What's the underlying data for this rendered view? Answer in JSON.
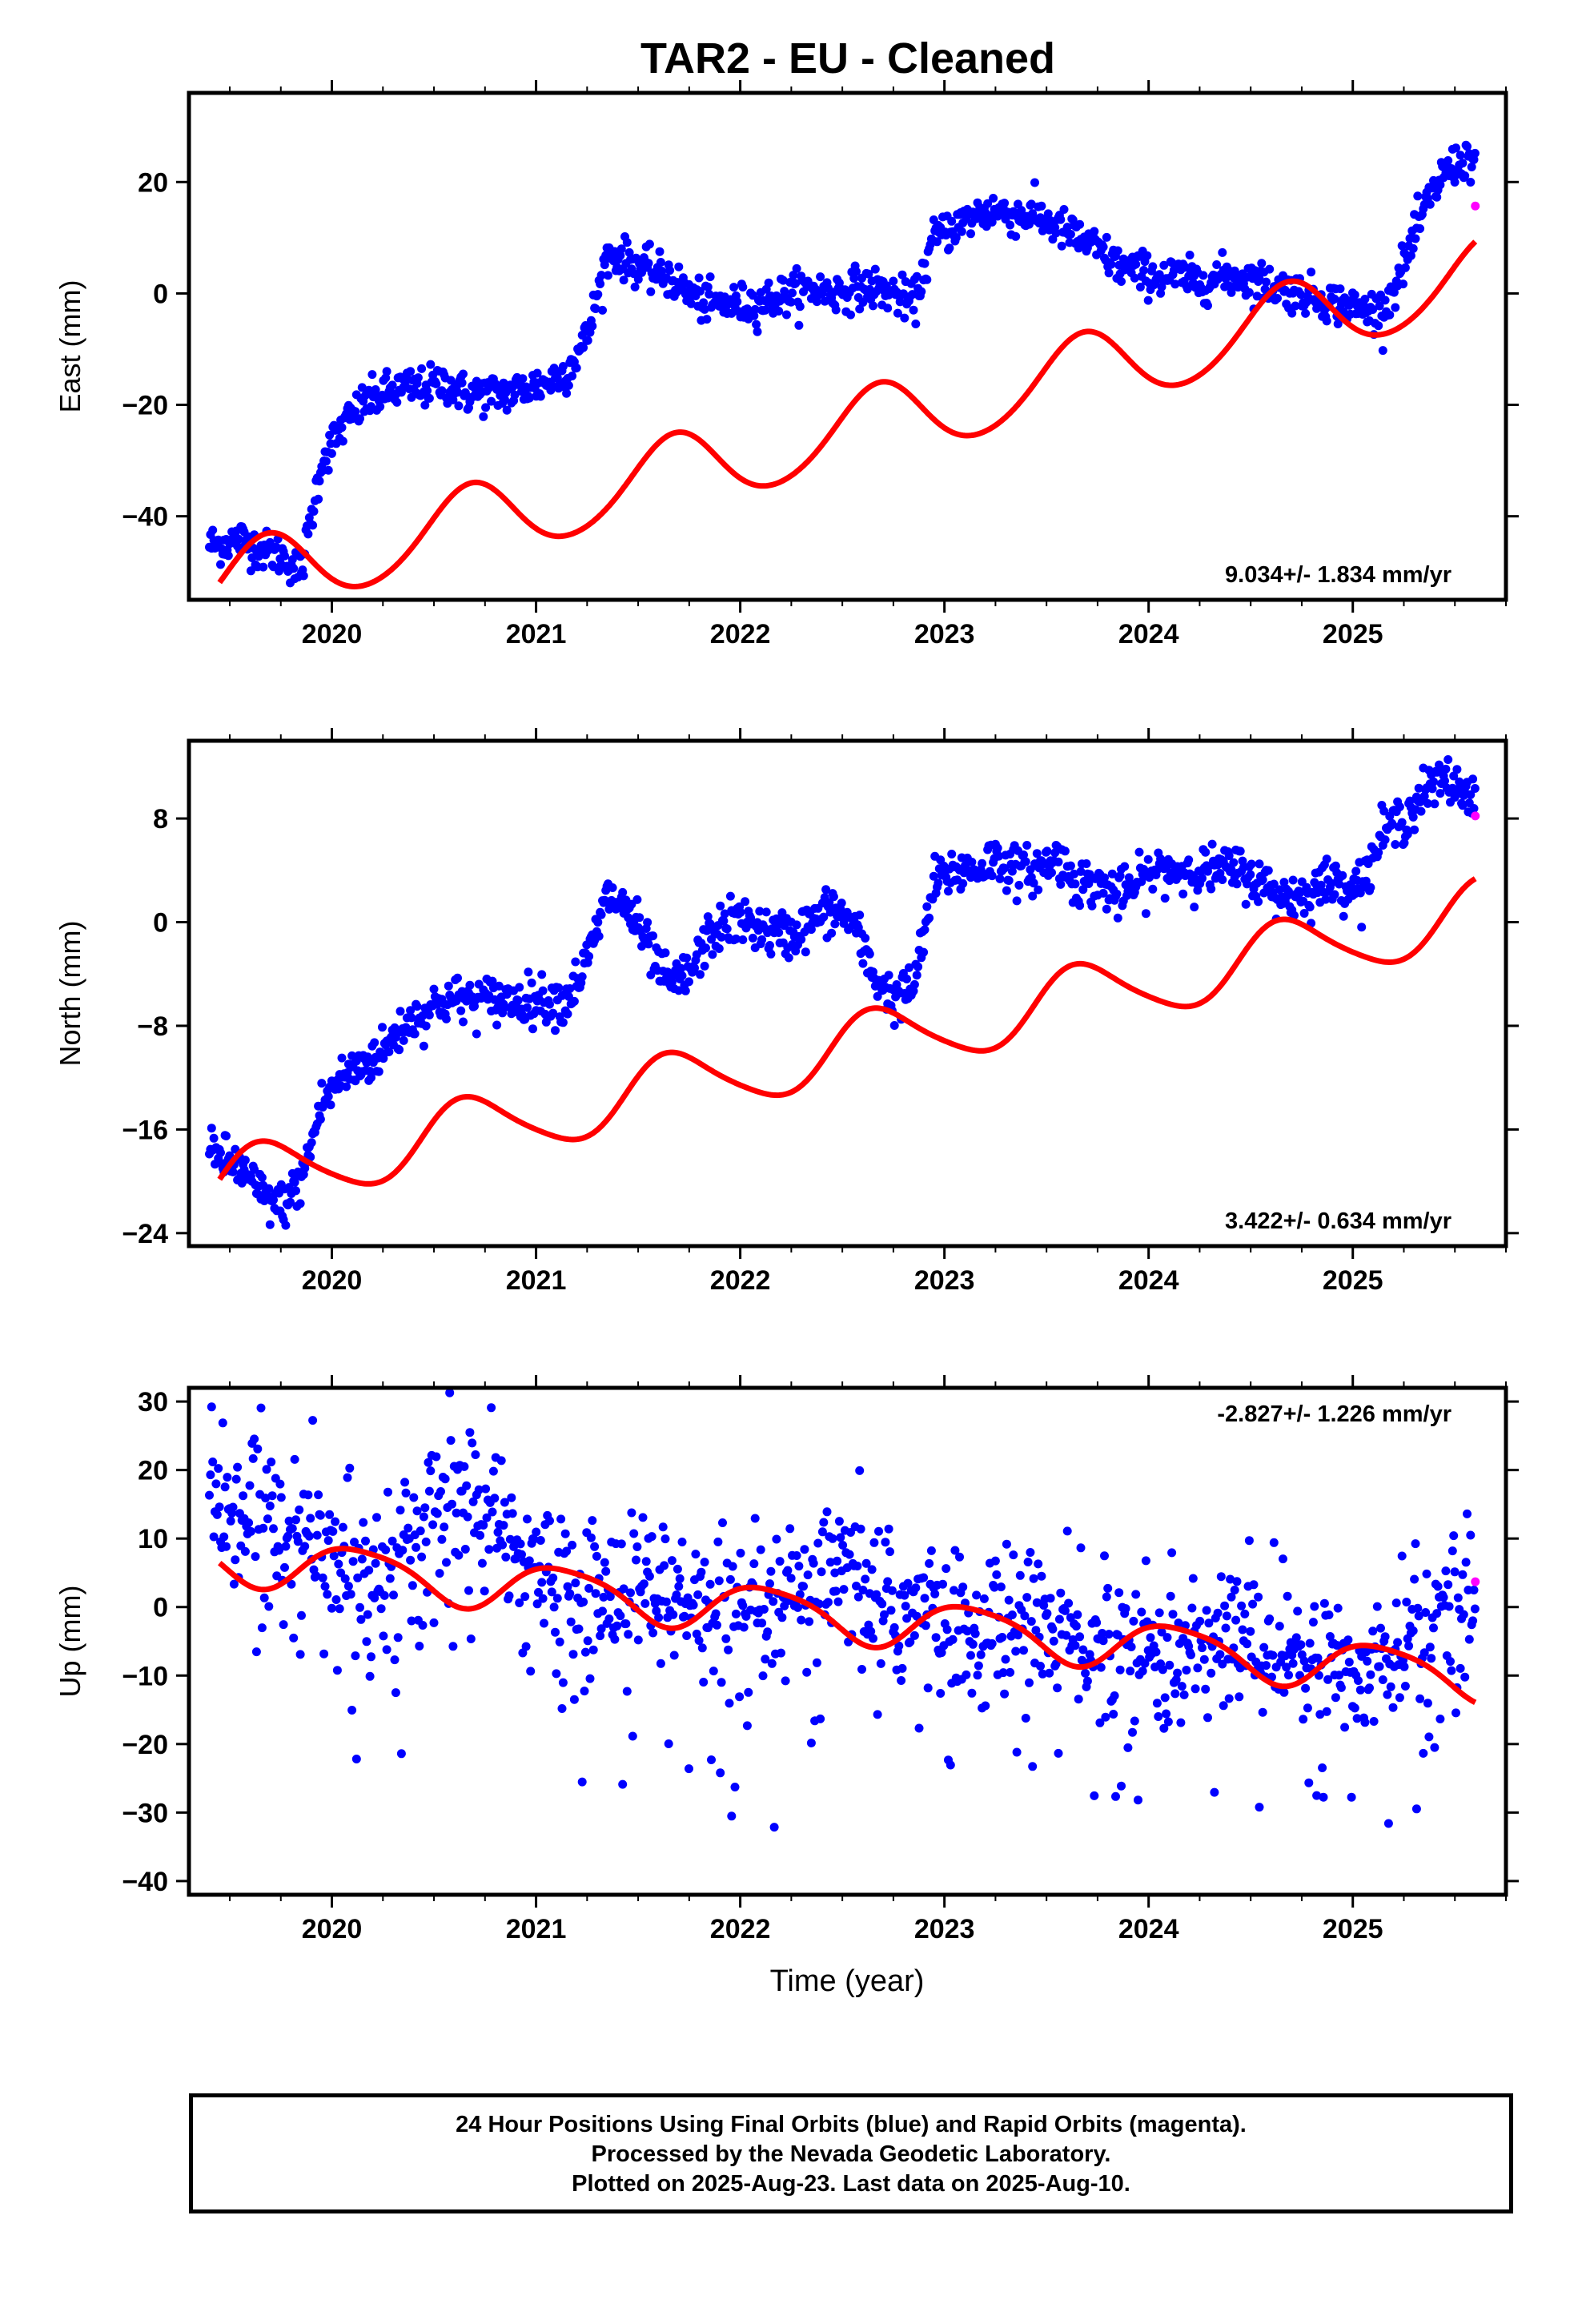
{
  "title": "TAR2  - EU - Cleaned",
  "xlabel": "Time (year)",
  "footer": [
    "24 Hour Positions Using Final Orbits (blue) and Rapid Orbits (magenta).",
    "Processed by the Nevada Geodetic Laboratory.",
    "Plotted on 2025-Aug-23. Last data on 2025-Aug-10."
  ],
  "colors": {
    "final": "#0000ff",
    "rapid": "#ff00ff",
    "model": "#ff0000",
    "frame": "#000000"
  },
  "chart_data": [
    {
      "type": "scatter",
      "ylabel": "East (mm)",
      "rate_label": "9.034+/- 1.834 mm/yr",
      "rate_position": "bottom-right",
      "xlim": [
        2019.3,
        2025.75
      ],
      "ylim": [
        -55,
        36
      ],
      "yticks": [
        -40,
        -20,
        0,
        20
      ],
      "xticks": [
        2020,
        2021,
        2022,
        2023,
        2024,
        2025
      ],
      "grid": false,
      "model": {
        "offset": -52.5,
        "rate": 9.034,
        "annual_cos": -3.2,
        "annual_sin": -6.0,
        "semiannual_cos": -0.5,
        "semiannual_sin": 0.3
      },
      "series": [
        {
          "kind": "final",
          "x": [
            2019.45,
            2019.55,
            2019.65,
            2019.75,
            2019.85,
            2019.95,
            2020.05,
            2020.15,
            2020.25,
            2020.35,
            2020.45,
            2020.55,
            2020.65,
            2020.75,
            2020.85,
            2020.95,
            2021.05,
            2021.15,
            2021.25,
            2021.35,
            2021.45,
            2021.55,
            2021.65,
            2021.75,
            2021.85,
            2021.95,
            2022.05,
            2022.15,
            2022.25,
            2022.35,
            2022.45,
            2022.55,
            2022.65,
            2022.75,
            2022.85,
            2022.95,
            2023.05,
            2023.15,
            2023.25,
            2023.35,
            2023.45,
            2023.55,
            2023.65,
            2023.75,
            2023.85,
            2023.95,
            2024.05,
            2024.15,
            2024.25,
            2024.35,
            2024.45,
            2024.55,
            2024.65,
            2024.75,
            2024.85,
            2024.95,
            2025.05,
            2025.15,
            2025.25,
            2025.35,
            2025.45,
            2025.55
          ],
          "y": [
            -45,
            -44,
            -46,
            -47,
            -50,
            -30,
            -24,
            -20,
            -18,
            -17,
            -17,
            -16,
            -18,
            -18,
            -18,
            -17,
            -16,
            -14,
            -8,
            7,
            6,
            4,
            3,
            0,
            -2,
            -2,
            -2,
            -1,
            0,
            1,
            0,
            1,
            1,
            0,
            -2,
            10,
            12,
            14,
            15,
            14,
            14,
            12,
            10,
            8,
            5,
            4,
            3,
            3,
            2,
            3,
            3,
            2,
            1,
            0,
            -1,
            -2,
            -3,
            -3,
            5,
            15,
            22,
            24
          ]
        },
        {
          "kind": "rapid",
          "x": [
            2025.6
          ],
          "y": [
            15.7
          ]
        }
      ]
    },
    {
      "type": "scatter",
      "ylabel": "North (mm)",
      "rate_label": "3.422+/- 0.634 mm/yr",
      "rate_position": "bottom-right",
      "xlim": [
        2019.3,
        2025.75
      ],
      "ylim": [
        -25,
        14
      ],
      "yticks": [
        -24,
        -16,
        -8,
        0,
        8
      ],
      "xticks": [
        2020,
        2021,
        2022,
        2023,
        2024,
        2025
      ],
      "grid": false,
      "model": {
        "offset": -20.3,
        "rate": 3.422,
        "annual_cos": -1.2,
        "annual_sin": -2.2,
        "semiannual_cos": 0.2,
        "semiannual_sin": 0.3
      },
      "series": [
        {
          "kind": "final",
          "x": [
            2019.45,
            2019.55,
            2019.65,
            2019.75,
            2019.85,
            2019.95,
            2020.05,
            2020.15,
            2020.25,
            2020.35,
            2020.45,
            2020.55,
            2020.65,
            2020.75,
            2020.85,
            2020.95,
            2021.05,
            2021.15,
            2021.25,
            2021.35,
            2021.45,
            2021.55,
            2021.65,
            2021.75,
            2021.85,
            2021.95,
            2022.05,
            2022.15,
            2022.25,
            2022.35,
            2022.45,
            2022.55,
            2022.65,
            2022.75,
            2022.85,
            2022.95,
            2023.05,
            2023.15,
            2023.25,
            2023.35,
            2023.45,
            2023.55,
            2023.65,
            2023.75,
            2023.85,
            2023.95,
            2024.05,
            2024.15,
            2024.25,
            2024.35,
            2024.45,
            2024.55,
            2024.65,
            2024.75,
            2024.85,
            2024.95,
            2025.05,
            2025.15,
            2025.25,
            2025.35,
            2025.45,
            2025.55
          ],
          "y": [
            -18,
            -19,
            -21,
            -22,
            -20,
            -14,
            -12,
            -11,
            -10,
            -8,
            -7,
            -6,
            -6,
            -6,
            -6,
            -6,
            -6,
            -6,
            -3,
            2,
            1,
            -2,
            -5,
            -4,
            -1,
            0,
            0,
            -1,
            -1,
            0,
            1,
            0,
            -4,
            -6,
            -5,
            3,
            4,
            4,
            5,
            4,
            4,
            5,
            3,
            3,
            2,
            3,
            4,
            4,
            4,
            4,
            4,
            3,
            2,
            2,
            3,
            3,
            3,
            7,
            8,
            10,
            11,
            10
          ]
        },
        {
          "kind": "rapid",
          "x": [
            2025.6
          ],
          "y": [
            8.2
          ]
        }
      ]
    },
    {
      "type": "scatter",
      "ylabel": "Up (mm)",
      "rate_label": "-2.827+/- 1.226 mm/yr",
      "rate_position": "top-right",
      "xlim": [
        2019.3,
        2025.75
      ],
      "ylim": [
        -42,
        32
      ],
      "yticks": [
        -40,
        -30,
        -20,
        -10,
        0,
        10,
        20,
        30
      ],
      "xticks": [
        2020,
        2021,
        2022,
        2023,
        2024,
        2025
      ],
      "grid": false,
      "model": {
        "offset": 7.2,
        "rate": -2.827,
        "annual_cos": 2.3,
        "annual_sin": 2.6,
        "semiannual_cos": 0.4,
        "semiannual_sin": -0.5
      },
      "series": [
        {
          "kind": "final",
          "x": [
            2019.45,
            2019.55,
            2019.65,
            2019.75,
            2019.85,
            2019.95,
            2020.05,
            2020.15,
            2020.25,
            2020.35,
            2020.45,
            2020.55,
            2020.65,
            2020.75,
            2020.85,
            2020.95,
            2021.05,
            2021.15,
            2021.25,
            2021.35,
            2021.45,
            2021.55,
            2021.65,
            2021.75,
            2021.85,
            2021.95,
            2022.05,
            2022.15,
            2022.25,
            2022.35,
            2022.45,
            2022.55,
            2022.65,
            2022.75,
            2022.85,
            2022.95,
            2023.05,
            2023.15,
            2023.25,
            2023.35,
            2023.45,
            2023.55,
            2023.65,
            2023.75,
            2023.85,
            2023.95,
            2024.05,
            2024.15,
            2024.25,
            2024.35,
            2024.45,
            2024.55,
            2024.65,
            2024.75,
            2024.85,
            2024.95,
            2025.05,
            2025.15,
            2025.25,
            2025.35,
            2025.45,
            2025.55
          ],
          "y": [
            16,
            15,
            14,
            12,
            10,
            8,
            6,
            6,
            7,
            9,
            12,
            15,
            16,
            14,
            10,
            7,
            4,
            2,
            0,
            2,
            4,
            3,
            1,
            0,
            -2,
            -3,
            -3,
            -2,
            0,
            2,
            4,
            3,
            2,
            0,
            -1,
            -2,
            -3,
            -4,
            -3,
            -2,
            -1,
            -3,
            -5,
            -6,
            -7,
            -6,
            -7,
            -8,
            -7,
            -5,
            -4,
            -5,
            -6,
            -7,
            -8,
            -9,
            -9,
            -8,
            -6,
            -3,
            0,
            2
          ]
        },
        {
          "kind": "rapid",
          "x": [
            2025.6
          ],
          "y": [
            3.7
          ]
        }
      ]
    }
  ]
}
